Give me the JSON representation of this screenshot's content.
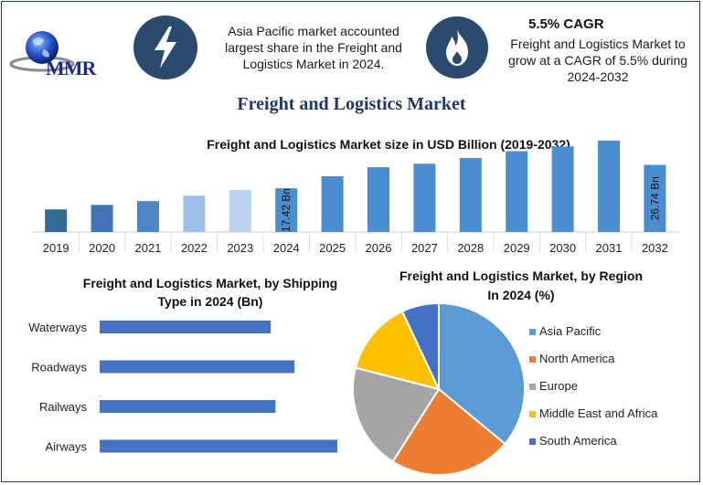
{
  "header": {
    "logo_text": "MMR",
    "info1": [
      "Asia Pacific market accounted",
      "largest share in the Freight and",
      "Logistics Market in 2024."
    ],
    "cagr_title": "5.5% CAGR",
    "info2": [
      "Freight and Logistics Market to",
      "grow at a CAGR of 5.5% during",
      "2024-2032"
    ],
    "icons": [
      "lightning-bolt-icon",
      "flame-icon",
      "globe-icon"
    ]
  },
  "main_title": "Freight and Logistics Market",
  "colors": {
    "dark_navy": "#2a4a6e",
    "bar_blue": "#4472c4",
    "title_navy": "#1f3864"
  },
  "chart_data": [
    {
      "type": "bar",
      "title": "Freight and Logistics Market size in USD Billion (2019-2032)",
      "categories": [
        "2019",
        "2020",
        "2021",
        "2022",
        "2023",
        "2024",
        "2025",
        "2026",
        "2027",
        "2028",
        "2029",
        "2030",
        "2031",
        "2032"
      ],
      "values": [
        9.0,
        10.8,
        12.3,
        14.5,
        16.8,
        17.42,
        22.2,
        25.8,
        27.2,
        29.5,
        32.2,
        34.1,
        36.4,
        26.74
      ],
      "bar_colors": [
        "#336b94",
        "#4174b6",
        "#4d86c6",
        "#9dc0e8",
        "#bdd2ee",
        "#4a8dd0",
        "#4a8dd0",
        "#4a8dd0",
        "#4a8dd0",
        "#4a8dd0",
        "#4a8dd0",
        "#4a8dd0",
        "#4a8dd0",
        "#4a8dd0"
      ],
      "data_labels": [
        {
          "index": 5,
          "text": "17.42 Bn"
        },
        {
          "index": 13,
          "text": "26.74 Bn"
        }
      ]
    },
    {
      "type": "bar",
      "orientation": "horizontal",
      "title": [
        "Freight and Logistics Market, by Shipping",
        "Type in 2024 (Bn)"
      ],
      "categories": [
        "Waterways",
        "Roadways",
        "Railways",
        "Airways"
      ],
      "values": [
        0.72,
        0.82,
        0.74,
        1.0
      ],
      "color": "#4472c4"
    },
    {
      "type": "pie",
      "title": [
        "Freight and Logistics Market, by Region",
        "In 2024 (%)"
      ],
      "labels": [
        "Asia Pacific",
        "North America",
        "Europe",
        "Middle East and Africa",
        "South America"
      ],
      "values": [
        36,
        23,
        20,
        14,
        7
      ],
      "colors": [
        "#5b9bd5",
        "#ed7d31",
        "#a5a5a5",
        "#ffc000",
        "#4472c4"
      ],
      "legend": "right"
    }
  ]
}
